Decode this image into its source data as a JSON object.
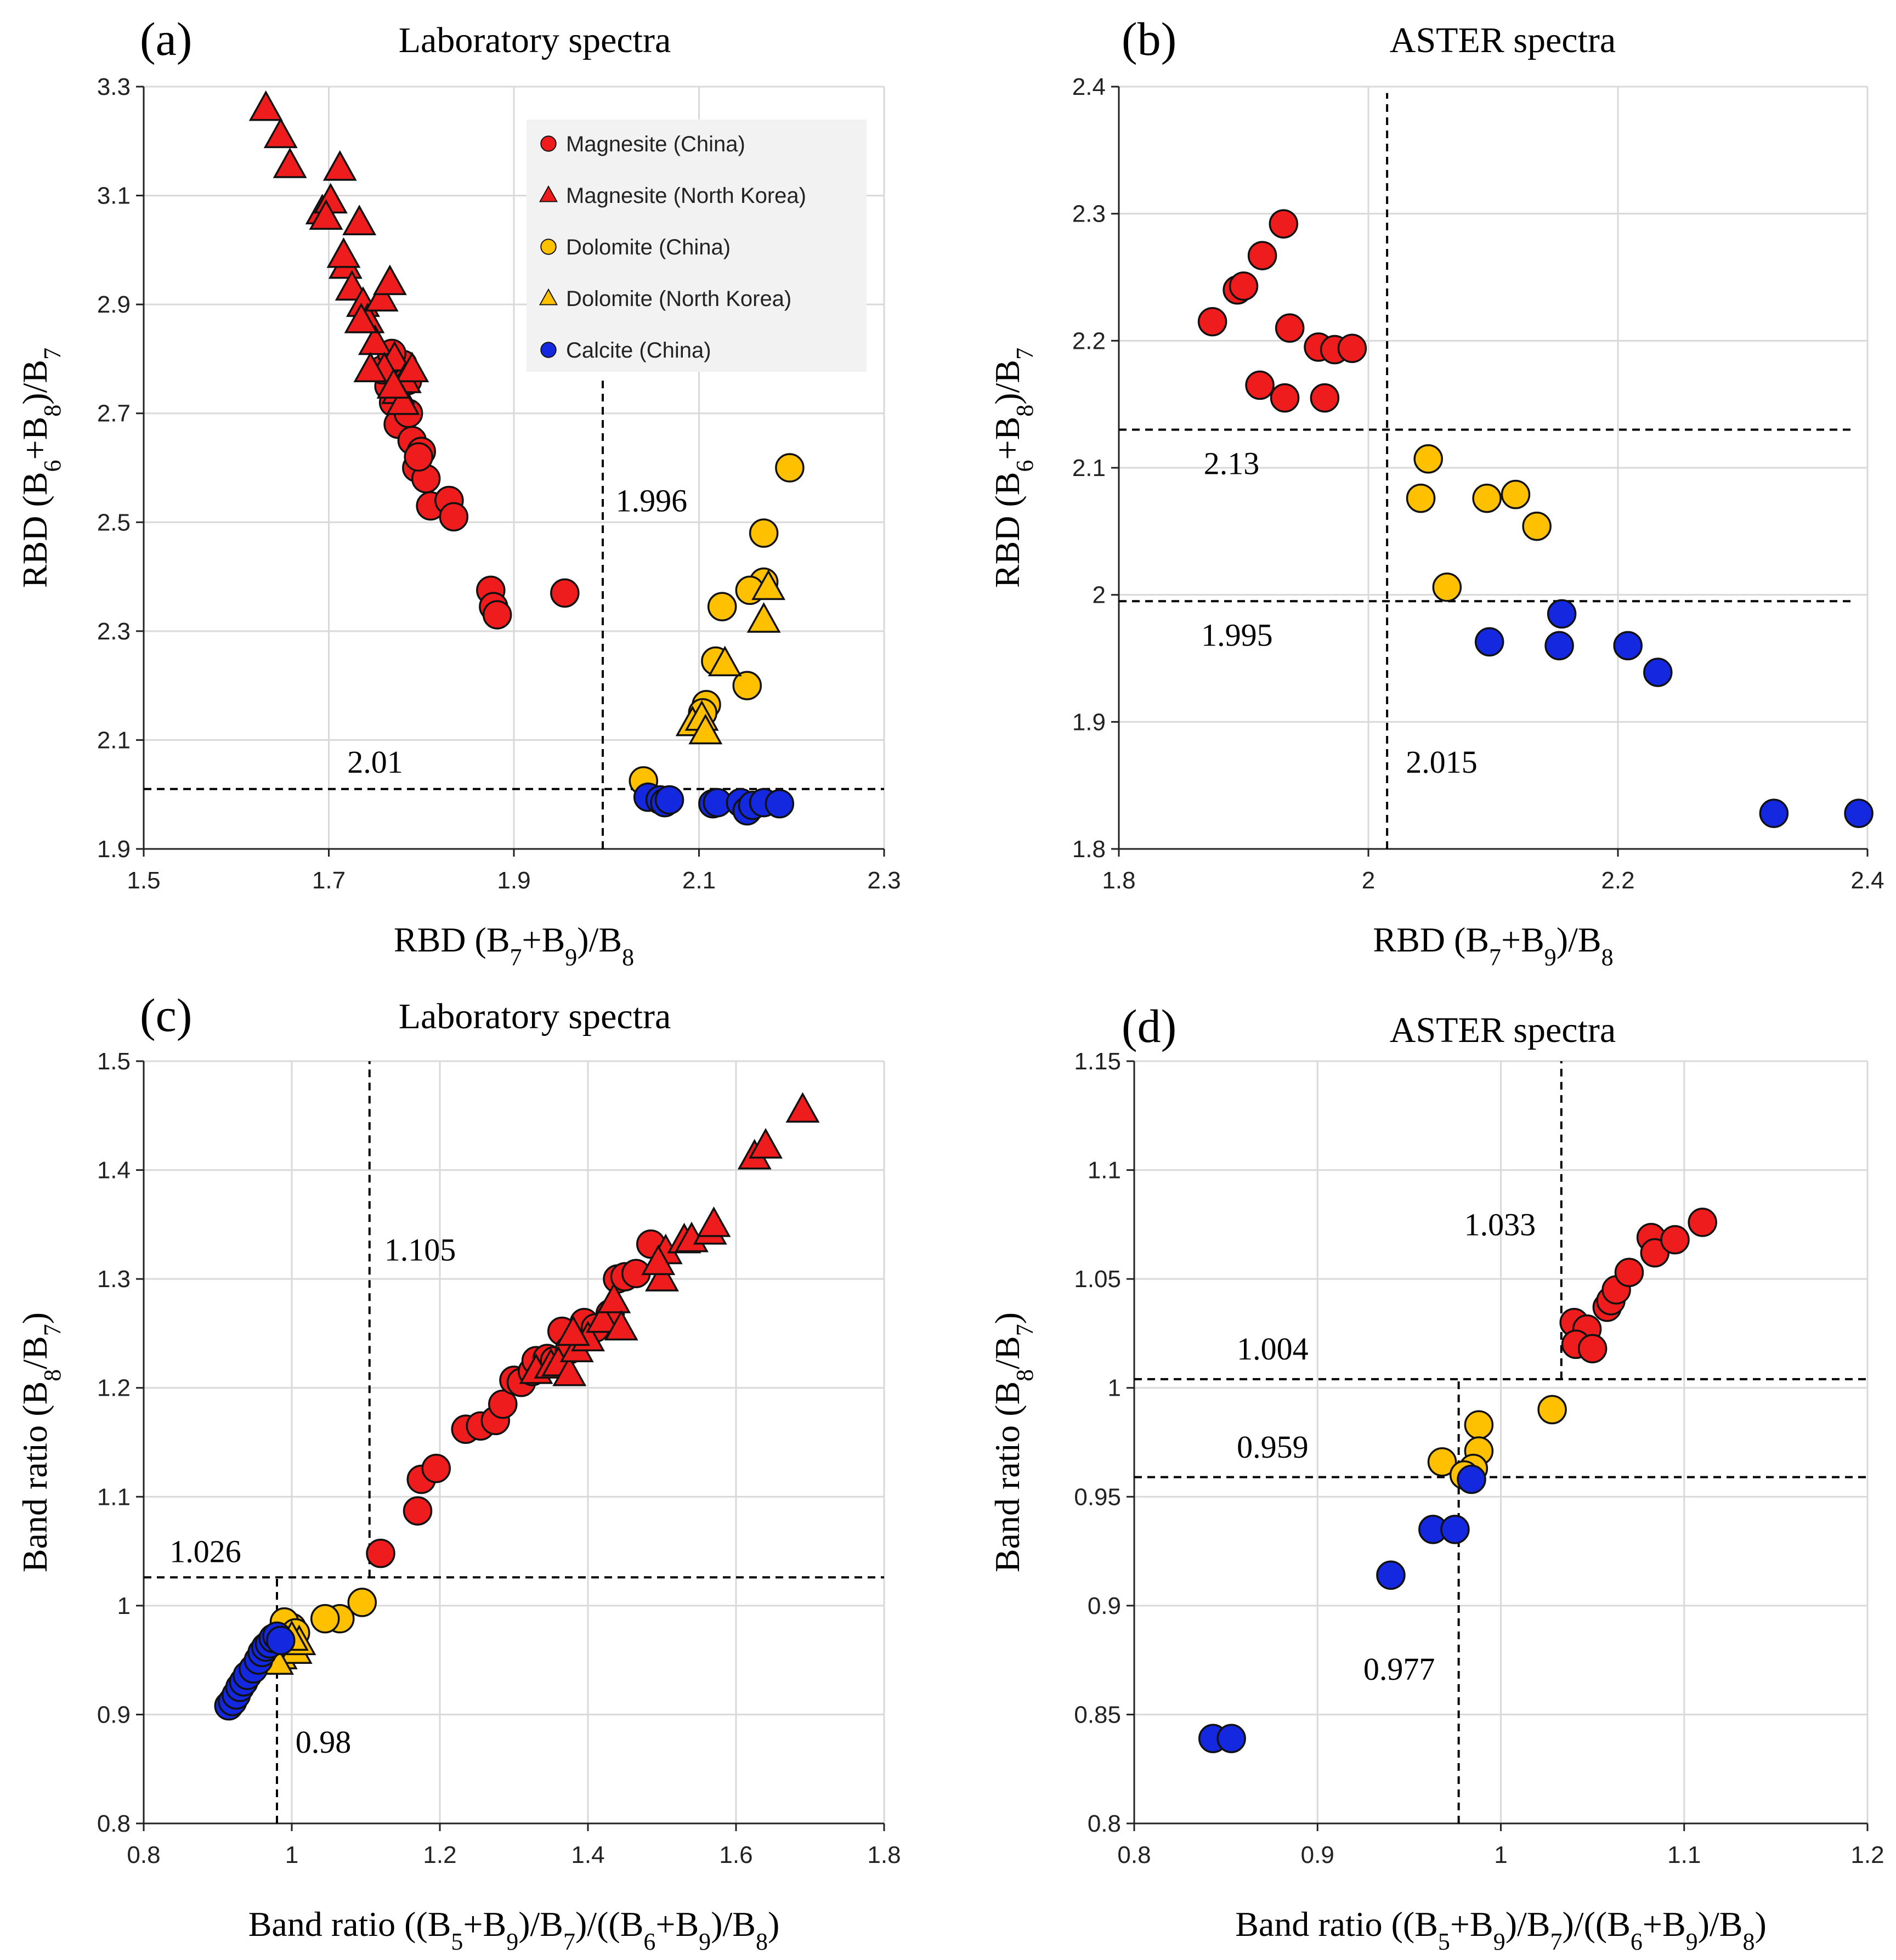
{
  "colors": {
    "magnesite": "#ee1c1c",
    "dolomite": "#ffc000",
    "calcite": "#1428e0"
  },
  "legend": [
    {
      "name": "Magnesite (China)",
      "marker": "circle",
      "color_key": "magnesite"
    },
    {
      "name": "Magnesite (North Korea)",
      "marker": "triangle",
      "color_key": "magnesite"
    },
    {
      "name": "Dolomite (China)",
      "marker": "circle",
      "color_key": "dolomite"
    },
    {
      "name": "Dolomite (North Korea)",
      "marker": "triangle",
      "color_key": "dolomite"
    },
    {
      "name": "Calcite (China)",
      "marker": "circle",
      "color_key": "calcite"
    }
  ],
  "chart_data": [
    {
      "type": "scatter",
      "label": "(a)",
      "title": "Laboratory spectra",
      "xlabel": [
        "RBD (B",
        "7",
        "+B",
        "9",
        ")/B",
        "8"
      ],
      "ylabel": [
        "RBD (B",
        "6",
        "+B",
        "8",
        ")/B",
        "7"
      ],
      "xlim": [
        1.5,
        2.3
      ],
      "ylim": [
        1.9,
        3.3
      ],
      "xticks": [
        1.5,
        1.7,
        1.9,
        2.1,
        2.3
      ],
      "xtick_labels": [
        "1.5",
        "1.7",
        "1.9",
        "2.1",
        "2.3"
      ],
      "yticks": [
        1.9,
        2.1,
        2.3,
        2.5,
        2.7,
        2.9,
        3.1,
        3.3
      ],
      "ytick_labels": [
        "1.9",
        "2.1",
        "2.3",
        "2.5",
        "2.7",
        "2.9",
        "3.1",
        "3.3"
      ],
      "legend_position": "top-right",
      "thresholds": [
        {
          "axis": "x",
          "value": 1.996,
          "from": 1.9,
          "to": 2.76,
          "label": "1.996",
          "label_x": 2.01,
          "label_y": 2.52
        },
        {
          "axis": "y",
          "value": 2.01,
          "from": 1.5,
          "to": 2.3,
          "label": "2.01",
          "label_x": 1.72,
          "label_y": 2.04
        }
      ],
      "series": [
        {
          "name": "Magnesite (China)",
          "marker": "circle",
          "color_key": "magnesite",
          "x": [
            1.765,
            1.77,
            1.775,
            1.78,
            1.785,
            1.79,
            1.795,
            1.8,
            1.805,
            1.81,
            1.83,
            1.835,
            1.875,
            1.878,
            1.882,
            1.955,
            1.758,
            1.768,
            1.786,
            1.797
          ],
          "y": [
            2.75,
            2.72,
            2.68,
            2.79,
            2.76,
            2.65,
            2.6,
            2.63,
            2.58,
            2.53,
            2.54,
            2.51,
            2.375,
            2.345,
            2.33,
            2.37,
            2.78,
            2.81,
            2.7,
            2.62
          ]
        },
        {
          "name": "Magnesite (North Korea)",
          "marker": "triangle",
          "color_key": "magnesite",
          "x": [
            1.632,
            1.648,
            1.658,
            1.693,
            1.702,
            1.697,
            1.712,
            1.718,
            1.716,
            1.733,
            1.725,
            1.737,
            1.742,
            1.75,
            1.757,
            1.766,
            1.771,
            1.76,
            1.775,
            1.782,
            1.79,
            1.735,
            1.745,
            1.78,
            1.77
          ],
          "y": [
            3.26,
            3.21,
            3.155,
            3.07,
            3.09,
            3.06,
            3.15,
            2.97,
            2.99,
            3.05,
            2.93,
            2.9,
            2.87,
            2.83,
            2.91,
            2.94,
            2.8,
            2.78,
            2.74,
            2.76,
            2.78,
            2.87,
            2.78,
            2.72,
            2.75
          ]
        },
        {
          "name": "Dolomite (China)",
          "marker": "circle",
          "color_key": "dolomite",
          "x": [
            2.198,
            2.17,
            2.17,
            2.155,
            2.125,
            2.118,
            2.108,
            2.104,
            2.152,
            2.04
          ],
          "y": [
            2.6,
            2.48,
            2.39,
            2.375,
            2.345,
            2.245,
            2.165,
            2.15,
            2.2,
            2.025
          ]
        },
        {
          "name": "Dolomite (North Korea)",
          "marker": "triangle",
          "color_key": "dolomite",
          "x": [
            2.175,
            2.17,
            2.128,
            2.093,
            2.103,
            2.107
          ],
          "y": [
            2.38,
            2.32,
            2.24,
            2.13,
            2.14,
            2.115
          ]
        },
        {
          "name": "Calcite (China)",
          "marker": "circle",
          "color_key": "calcite",
          "x": [
            2.045,
            2.058,
            2.063,
            2.068,
            2.115,
            2.12,
            2.145,
            2.152,
            2.158,
            2.17,
            2.187
          ],
          "y": [
            1.995,
            1.99,
            1.985,
            1.99,
            1.983,
            1.985,
            1.985,
            1.97,
            1.98,
            1.985,
            1.983
          ]
        }
      ]
    },
    {
      "type": "scatter",
      "label": "(b)",
      "title": "ASTER spectra",
      "xlabel": [
        "RBD (B",
        "7",
        "+B",
        "9",
        ")/B",
        "8"
      ],
      "ylabel": [
        "RBD (B",
        "6",
        "+B",
        "8",
        ")/B",
        "7"
      ],
      "xlim": [
        1.8,
        2.4
      ],
      "ylim": [
        1.8,
        2.4
      ],
      "xticks": [
        1.8,
        2.0,
        2.2,
        2.4
      ],
      "xtick_labels": [
        "1.8",
        "2",
        "2.2",
        "2.4"
      ],
      "yticks": [
        1.8,
        1.9,
        2.0,
        2.1,
        2.2,
        2.3,
        2.4
      ],
      "ytick_labels": [
        "1.8",
        "1.9",
        "2",
        "2.1",
        "2.2",
        "2.3",
        "2.4"
      ],
      "thresholds": [
        {
          "axis": "x",
          "value": 2.015,
          "from": 1.8,
          "to": 2.395,
          "label": "2.015",
          "label_x": 2.03,
          "label_y": 1.86
        },
        {
          "axis": "y",
          "value": 2.13,
          "from": 1.8,
          "to": 2.39,
          "label": "2.13",
          "label_x": 1.868,
          "label_y": 2.095
        },
        {
          "axis": "y",
          "value": 1.995,
          "from": 1.8,
          "to": 2.39,
          "label": "1.995",
          "label_x": 1.866,
          "label_y": 1.96
        }
      ],
      "series": [
        {
          "name": "Magnesite",
          "marker": "circle",
          "color_key": "magnesite",
          "x": [
            1.875,
            1.895,
            1.9,
            1.915,
            1.932,
            1.937,
            1.96,
            1.973,
            1.987,
            1.913,
            1.933,
            1.965
          ],
          "y": [
            2.215,
            2.24,
            2.243,
            2.267,
            2.292,
            2.21,
            2.195,
            2.193,
            2.194,
            2.165,
            2.155,
            2.155
          ]
        },
        {
          "name": "Dolomite",
          "marker": "circle",
          "color_key": "dolomite",
          "x": [
            2.048,
            2.042,
            2.095,
            2.118,
            2.135,
            2.063
          ],
          "y": [
            2.107,
            2.076,
            2.076,
            2.079,
            2.054,
            2.006
          ]
        },
        {
          "name": "Calcite",
          "marker": "circle",
          "color_key": "calcite",
          "x": [
            2.155,
            2.097,
            2.153,
            2.208,
            2.232,
            2.325,
            2.393
          ],
          "y": [
            1.985,
            1.963,
            1.96,
            1.96,
            1.939,
            1.828,
            1.828
          ]
        }
      ]
    },
    {
      "type": "scatter",
      "label": "(c)",
      "title": "Laboratory spectra",
      "xlabel": [
        "Band ratio ((B",
        "5",
        "+B",
        "9",
        ")/B",
        "7",
        ")/((B",
        "6",
        "+B",
        "9",
        ")/B",
        "8",
        ")"
      ],
      "ylabel": [
        "Band ratio (B",
        "8",
        "/B",
        "7",
        ")"
      ],
      "xlim": [
        0.8,
        1.8
      ],
      "ylim": [
        0.8,
        1.5
      ],
      "xticks": [
        0.8,
        1.0,
        1.2,
        1.4,
        1.6,
        1.8
      ],
      "xtick_labels": [
        "0.8",
        "1",
        "1.2",
        "1.4",
        "1.6",
        "1.8"
      ],
      "yticks": [
        0.8,
        0.9,
        1.0,
        1.1,
        1.2,
        1.3,
        1.4,
        1.5
      ],
      "ytick_labels": [
        "0.8",
        "0.9",
        "1",
        "1.1",
        "1.2",
        "1.3",
        "1.4",
        "1.5"
      ],
      "thresholds": [
        {
          "axis": "x",
          "value": 1.105,
          "from": 1.026,
          "to": 1.5,
          "label": "1.105",
          "label_x": 1.125,
          "label_y": 1.317
        },
        {
          "axis": "y",
          "value": 1.026,
          "from": 0.8,
          "to": 1.8,
          "label": "1.026",
          "label_x": 0.835,
          "label_y": 1.04
        },
        {
          "axis": "x",
          "value": 0.98,
          "from": 0.8,
          "to": 1.026,
          "label": "0.98",
          "label_x": 1.005,
          "label_y": 0.865
        }
      ],
      "series": [
        {
          "name": "Magnesite (China)",
          "marker": "circle",
          "color_key": "magnesite",
          "x": [
            1.12,
            1.17,
            1.175,
            1.195,
            1.235,
            1.255,
            1.275,
            1.285,
            1.3,
            1.31,
            1.325,
            1.33,
            1.345,
            1.355,
            1.365,
            1.375,
            1.395,
            1.41,
            1.43,
            1.44,
            1.45,
            1.465,
            1.485
          ],
          "y": [
            1.048,
            1.087,
            1.116,
            1.126,
            1.162,
            1.165,
            1.17,
            1.185,
            1.207,
            1.205,
            1.215,
            1.225,
            1.227,
            1.225,
            1.252,
            1.235,
            1.26,
            1.255,
            1.268,
            1.3,
            1.302,
            1.305,
            1.332
          ]
        },
        {
          "name": "Magnesite (North Korea)",
          "marker": "triangle",
          "color_key": "magnesite",
          "x": [
            1.33,
            1.35,
            1.36,
            1.375,
            1.385,
            1.4,
            1.42,
            1.435,
            1.445,
            1.5,
            1.505,
            1.53,
            1.54,
            1.565,
            1.57,
            1.625,
            1.64,
            1.69,
            1.495,
            1.38
          ],
          "y": [
            1.215,
            1.22,
            1.222,
            1.213,
            1.235,
            1.245,
            1.262,
            1.28,
            1.255,
            1.3,
            1.325,
            1.335,
            1.336,
            1.343,
            1.35,
            1.412,
            1.422,
            1.455,
            1.315,
            1.25
          ]
        },
        {
          "name": "Dolomite (China)",
          "marker": "circle",
          "color_key": "dolomite",
          "x": [
            1.095,
            1.065,
            1.045,
            1.0,
            0.99,
            1.005
          ],
          "y": [
            1.003,
            0.988,
            0.988,
            0.98,
            0.985,
            0.975
          ]
        },
        {
          "name": "Dolomite (North Korea)",
          "marker": "triangle",
          "color_key": "dolomite",
          "x": [
            0.985,
            0.995,
            1.005,
            1.01,
            0.98,
            1.0
          ],
          "y": [
            0.953,
            0.96,
            0.958,
            0.966,
            0.948,
            0.97
          ]
        },
        {
          "name": "Calcite (China)",
          "marker": "circle",
          "color_key": "calcite",
          "x": [
            0.915,
            0.92,
            0.925,
            0.93,
            0.935,
            0.94,
            0.948,
            0.955,
            0.96,
            0.965,
            0.97,
            0.975,
            0.98,
            0.985
          ],
          "y": [
            0.908,
            0.912,
            0.918,
            0.925,
            0.93,
            0.936,
            0.942,
            0.95,
            0.957,
            0.962,
            0.965,
            0.97,
            0.972,
            0.968
          ]
        }
      ]
    },
    {
      "type": "scatter",
      "label": "(d)",
      "title": "ASTER spectra",
      "xlabel": [
        "Band ratio ((B",
        "5",
        "+B",
        "9",
        ")/B",
        "7",
        ")/((B",
        "6",
        "+B",
        "9",
        ")/B",
        "8",
        ")"
      ],
      "ylabel": [
        "Band ratio (B",
        "8",
        "/B",
        "7",
        ")"
      ],
      "xlim": [
        0.8,
        1.2
      ],
      "ylim": [
        0.8,
        1.15
      ],
      "xticks": [
        0.8,
        0.9,
        1.0,
        1.1,
        1.2
      ],
      "xtick_labels": [
        "0.8",
        "0.9",
        "1",
        "1.1",
        "1.2"
      ],
      "yticks": [
        0.8,
        0.85,
        0.9,
        0.95,
        1.0,
        1.05,
        1.1,
        1.15
      ],
      "ytick_labels": [
        "0.8",
        "0.85",
        "0.9",
        "0.95",
        "1",
        "1.05",
        "1.1",
        "1.15"
      ],
      "thresholds": [
        {
          "axis": "x",
          "value": 1.033,
          "from": 1.004,
          "to": 1.15,
          "label": "1.033",
          "label_x": 0.98,
          "label_y": 1.07
        },
        {
          "axis": "y",
          "value": 1.004,
          "from": 0.8,
          "to": 1.2,
          "label": "1.004",
          "label_x": 0.856,
          "label_y": 1.013
        },
        {
          "axis": "y",
          "value": 0.959,
          "from": 0.8,
          "to": 1.2,
          "label": "0.959",
          "label_x": 0.856,
          "label_y": 0.968
        },
        {
          "axis": "x",
          "value": 0.977,
          "from": 0.8,
          "to": 1.004,
          "label": "0.977",
          "label_x": 0.925,
          "label_y": 0.866
        }
      ],
      "series": [
        {
          "name": "Magnesite",
          "marker": "circle",
          "color_key": "magnesite",
          "x": [
            1.04,
            1.047,
            1.041,
            1.05,
            1.058,
            1.06,
            1.063,
            1.07,
            1.082,
            1.084,
            1.095,
            1.11
          ],
          "y": [
            1.03,
            1.027,
            1.02,
            1.018,
            1.037,
            1.04,
            1.045,
            1.053,
            1.069,
            1.062,
            1.068,
            1.076
          ]
        },
        {
          "name": "Dolomite",
          "marker": "circle",
          "color_key": "dolomite",
          "x": [
            1.028,
            0.988,
            0.988,
            0.968,
            0.985,
            0.98
          ],
          "y": [
            0.99,
            0.983,
            0.971,
            0.966,
            0.963,
            0.96
          ]
        },
        {
          "name": "Calcite",
          "marker": "circle",
          "color_key": "calcite",
          "x": [
            0.984,
            0.963,
            0.975,
            0.94,
            0.843,
            0.853
          ],
          "y": [
            0.958,
            0.935,
            0.935,
            0.914,
            0.839,
            0.839
          ]
        }
      ]
    }
  ]
}
